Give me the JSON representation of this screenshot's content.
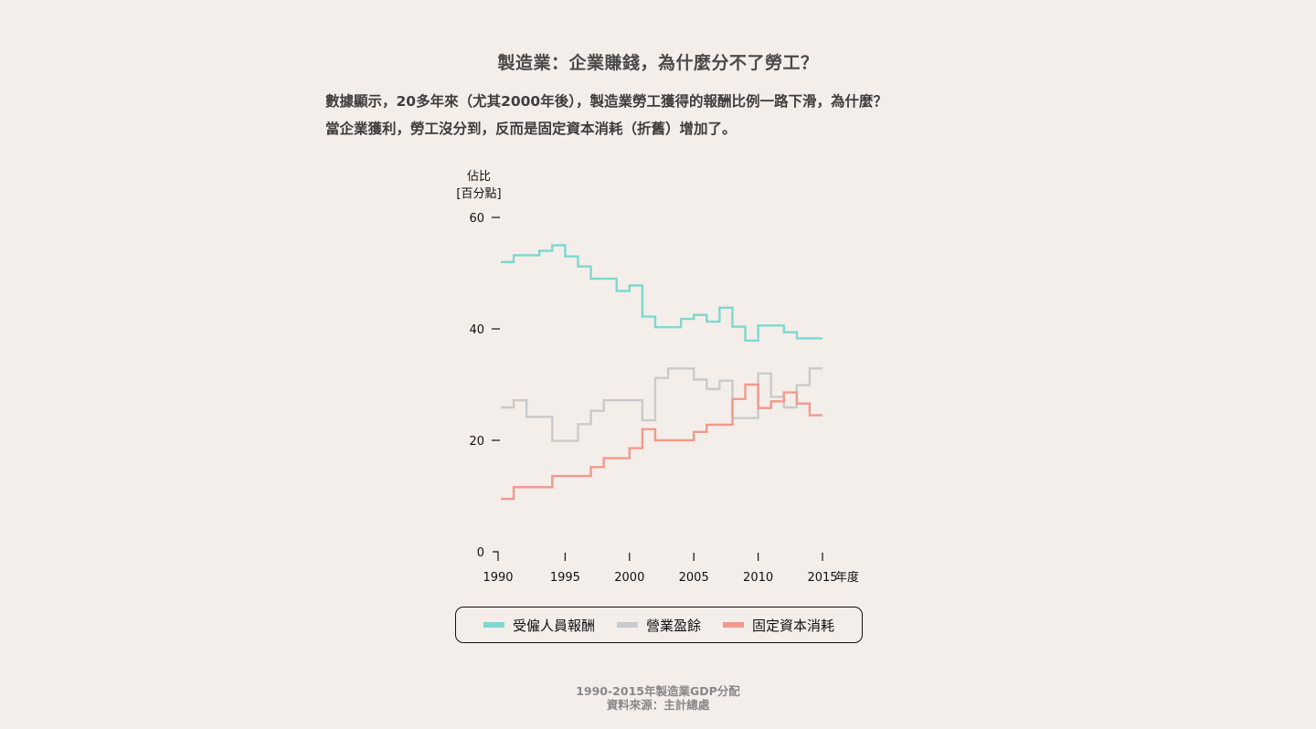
{
  "header": {
    "title": "製造業：企業賺錢，為什麼分不了勞工？",
    "desc_line1": "數據顯示，20多年來（尤其2000年後），製造業勞工獲得的報酬比例一路下滑，為什麼？",
    "desc_line2": "當企業獲利，勞工沒分到，反而是固定資本消耗（折舊）增加了。"
  },
  "chart_data": {
    "type": "line",
    "step": true,
    "ylabel_line1": "佔比",
    "ylabel_line2": "[百分點]",
    "xlabel": "年度",
    "ylim": [
      0,
      60
    ],
    "xlim": [
      1990,
      2015
    ],
    "yticks": [
      0,
      20,
      40,
      60
    ],
    "xticks": [
      1990,
      1995,
      2000,
      2005,
      2010,
      2015
    ],
    "x": [
      1990,
      1991,
      1992,
      1993,
      1994,
      1995,
      1996,
      1997,
      1998,
      1999,
      2000,
      2001,
      2002,
      2003,
      2004,
      2005,
      2006,
      2007,
      2008,
      2009,
      2010,
      2011,
      2012,
      2013,
      2014,
      2015
    ],
    "series": [
      {
        "name": "受僱人員報酬",
        "color": "#7dd8d0",
        "values": [
          52,
          53.2,
          53.2,
          54,
          55,
          53,
          51.2,
          49,
          49,
          46.8,
          47.8,
          42.2,
          40.3,
          40.3,
          41.8,
          42.5,
          41.3,
          43.8,
          40.4,
          37.9,
          40.6,
          40.6,
          39.4,
          38.3,
          38.3,
          38.3
        ]
      },
      {
        "name": "營業盈餘",
        "color": "#cacaca",
        "values": [
          25.9,
          27.2,
          24.2,
          24.2,
          19.9,
          19.9,
          22.9,
          25.3,
          27.2,
          27.2,
          27.2,
          23.6,
          31.2,
          32.9,
          32.9,
          30.9,
          29.2,
          30.7,
          24,
          24,
          32,
          27.8,
          25.9,
          29.9,
          32.9,
          32.9
        ]
      },
      {
        "name": "固定資本消耗",
        "color": "#f4988c",
        "values": [
          9.5,
          11.6,
          11.6,
          11.6,
          13.6,
          13.6,
          13.6,
          15.2,
          16.8,
          16.8,
          18.6,
          22,
          20,
          20,
          20,
          21.5,
          22.8,
          22.8,
          27.4,
          30,
          25.8,
          27,
          28.6,
          26.6,
          24.5,
          24.5
        ]
      }
    ]
  },
  "footer": {
    "line1": "1990-2015年製造業GDP分配",
    "line2": "資料來源：主計總處"
  }
}
